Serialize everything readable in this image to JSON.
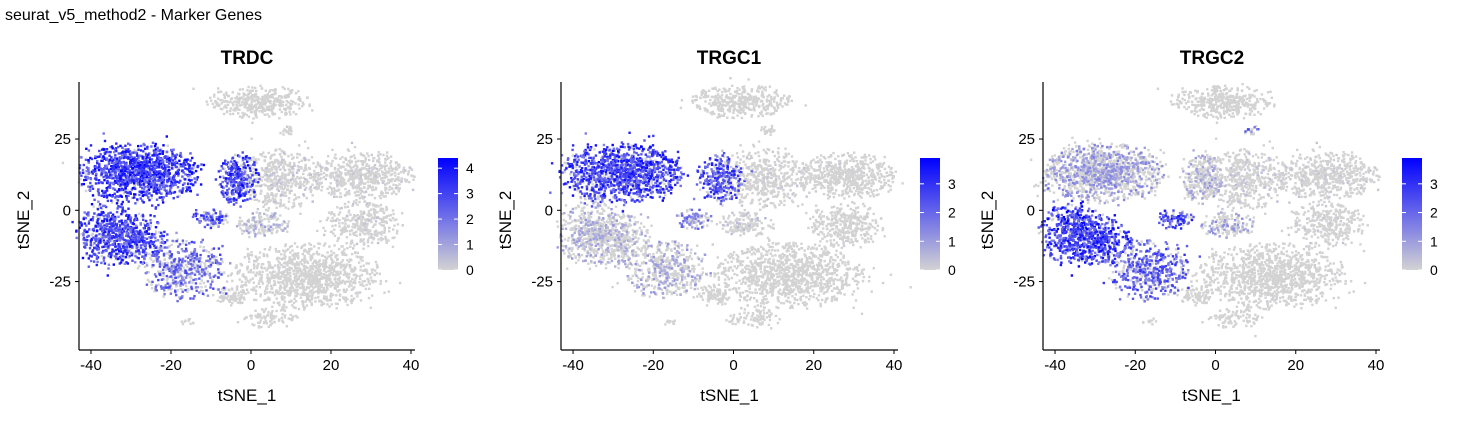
{
  "page": {
    "title": "seurat_v5_method2 - Marker Genes"
  },
  "chart_data": [
    {
      "type": "scatter",
      "title": "TRDC",
      "xlabel": "tSNE_1",
      "ylabel": "tSNE_2",
      "xlim": [
        -43,
        41
      ],
      "ylim": [
        -49,
        45
      ],
      "xticks": [
        -40,
        -20,
        0,
        20,
        40
      ],
      "yticks": [
        -25,
        0,
        25
      ],
      "legend": {
        "position": "right",
        "ticks": [
          0,
          1,
          2,
          3,
          4
        ],
        "max": 4.4,
        "low_color": "#d3d3d3",
        "high_color": "#0000ff"
      },
      "clusters": [
        {
          "cx": -28,
          "cy": 13,
          "rx": 13,
          "ry": 9,
          "n": 1200,
          "level": 0.72
        },
        {
          "cx": -36,
          "cy": -8,
          "rx": 6.5,
          "ry": 10,
          "n": 420,
          "level": 0.68
        },
        {
          "cx": -29,
          "cy": -10,
          "rx": 7,
          "ry": 8,
          "n": 380,
          "level": 0.66
        },
        {
          "cx": -17,
          "cy": -21,
          "rx": 9,
          "ry": 9,
          "n": 480,
          "level": 0.5
        },
        {
          "cx": -10,
          "cy": -3,
          "rx": 4,
          "ry": 3,
          "n": 90,
          "level": 0.6
        },
        {
          "cx": -3,
          "cy": 11,
          "rx": 4.5,
          "ry": 7.5,
          "n": 300,
          "level": 0.7
        },
        {
          "cx": 2,
          "cy": 38,
          "rx": 11,
          "ry": 5,
          "n": 380,
          "level": 0.03
        },
        {
          "cx": 9,
          "cy": 28,
          "rx": 2,
          "ry": 1.5,
          "n": 20,
          "level": 0.05
        },
        {
          "cx": 8,
          "cy": 11,
          "rx": 9,
          "ry": 9,
          "n": 450,
          "level": 0.08
        },
        {
          "cx": 28,
          "cy": 12,
          "rx": 11,
          "ry": 7,
          "n": 550,
          "level": 0.05
        },
        {
          "cx": 28,
          "cy": -5,
          "rx": 8,
          "ry": 7,
          "n": 320,
          "level": 0.06
        },
        {
          "cx": 3,
          "cy": -5,
          "rx": 6,
          "ry": 4,
          "n": 160,
          "level": 0.18
        },
        {
          "cx": 14,
          "cy": -23,
          "rx": 16,
          "ry": 10,
          "n": 1050,
          "level": 0.03
        },
        {
          "cx": -5,
          "cy": -30,
          "rx": 4,
          "ry": 3,
          "n": 80,
          "level": 0.02
        },
        {
          "cx": 5,
          "cy": -38,
          "rx": 6,
          "ry": 3,
          "n": 80,
          "level": 0.02
        },
        {
          "cx": -16,
          "cy": -39,
          "rx": 2,
          "ry": 1,
          "n": 10,
          "level": 0.02
        }
      ]
    },
    {
      "type": "scatter",
      "title": "TRGC1",
      "xlabel": "tSNE_1",
      "ylabel": "tSNE_2",
      "xlim": [
        -43,
        41
      ],
      "ylim": [
        -49,
        45
      ],
      "xticks": [
        -40,
        -20,
        0,
        20,
        40
      ],
      "yticks": [
        -25,
        0,
        25
      ],
      "legend": {
        "position": "right",
        "ticks": [
          0,
          1,
          2,
          3
        ],
        "max": 3.9,
        "low_color": "#d3d3d3",
        "high_color": "#0000ff"
      },
      "clusters": [
        {
          "cx": -28,
          "cy": 13,
          "rx": 13,
          "ry": 9,
          "n": 1200,
          "level": 0.68
        },
        {
          "cx": -36,
          "cy": -8,
          "rx": 6.5,
          "ry": 10,
          "n": 420,
          "level": 0.2
        },
        {
          "cx": -29,
          "cy": -10,
          "rx": 7,
          "ry": 8,
          "n": 380,
          "level": 0.18
        },
        {
          "cx": -17,
          "cy": -21,
          "rx": 9,
          "ry": 9,
          "n": 480,
          "level": 0.22
        },
        {
          "cx": -10,
          "cy": -3,
          "rx": 4,
          "ry": 3,
          "n": 90,
          "level": 0.4
        },
        {
          "cx": -3,
          "cy": 11,
          "rx": 4.5,
          "ry": 7.5,
          "n": 300,
          "level": 0.6
        },
        {
          "cx": 2,
          "cy": 38,
          "rx": 11,
          "ry": 5,
          "n": 380,
          "level": 0.02
        },
        {
          "cx": 9,
          "cy": 28,
          "rx": 2,
          "ry": 1.5,
          "n": 20,
          "level": 0.04
        },
        {
          "cx": 8,
          "cy": 11,
          "rx": 9,
          "ry": 9,
          "n": 450,
          "level": 0.05
        },
        {
          "cx": 28,
          "cy": 12,
          "rx": 11,
          "ry": 7,
          "n": 550,
          "level": 0.03
        },
        {
          "cx": 28,
          "cy": -5,
          "rx": 8,
          "ry": 7,
          "n": 320,
          "level": 0.03
        },
        {
          "cx": 3,
          "cy": -5,
          "rx": 6,
          "ry": 4,
          "n": 160,
          "level": 0.1
        },
        {
          "cx": 14,
          "cy": -23,
          "rx": 16,
          "ry": 10,
          "n": 1050,
          "level": 0.02
        },
        {
          "cx": -5,
          "cy": -30,
          "rx": 4,
          "ry": 3,
          "n": 80,
          "level": 0.02
        },
        {
          "cx": 5,
          "cy": -38,
          "rx": 6,
          "ry": 3,
          "n": 80,
          "level": 0.02
        },
        {
          "cx": -16,
          "cy": -39,
          "rx": 2,
          "ry": 1,
          "n": 10,
          "level": 0.02
        }
      ]
    },
    {
      "type": "scatter",
      "title": "TRGC2",
      "xlabel": "tSNE_1",
      "ylabel": "tSNE_2",
      "xlim": [
        -43,
        41
      ],
      "ylim": [
        -49,
        45
      ],
      "xticks": [
        -40,
        -20,
        0,
        20,
        40
      ],
      "yticks": [
        -25,
        0,
        25
      ],
      "legend": {
        "position": "right",
        "ticks": [
          0,
          1,
          2,
          3
        ],
        "max": 3.9,
        "low_color": "#d3d3d3",
        "high_color": "#0000ff"
      },
      "clusters": [
        {
          "cx": -28,
          "cy": 13,
          "rx": 13,
          "ry": 9,
          "n": 1200,
          "level": 0.28
        },
        {
          "cx": -36,
          "cy": -8,
          "rx": 6.5,
          "ry": 10,
          "n": 420,
          "level": 0.72
        },
        {
          "cx": -29,
          "cy": -10,
          "rx": 7,
          "ry": 8,
          "n": 380,
          "level": 0.7
        },
        {
          "cx": -17,
          "cy": -21,
          "rx": 9,
          "ry": 9,
          "n": 480,
          "level": 0.55
        },
        {
          "cx": -10,
          "cy": -3,
          "rx": 4,
          "ry": 3,
          "n": 90,
          "level": 0.65
        },
        {
          "cx": -3,
          "cy": 11,
          "rx": 4.5,
          "ry": 7.5,
          "n": 300,
          "level": 0.2
        },
        {
          "cx": 2,
          "cy": 38,
          "rx": 11,
          "ry": 5,
          "n": 380,
          "level": 0.02
        },
        {
          "cx": 9,
          "cy": 28,
          "rx": 2,
          "ry": 1.5,
          "n": 20,
          "level": 0.5
        },
        {
          "cx": 8,
          "cy": 11,
          "rx": 9,
          "ry": 9,
          "n": 450,
          "level": 0.08
        },
        {
          "cx": 28,
          "cy": 12,
          "rx": 11,
          "ry": 7,
          "n": 550,
          "level": 0.05
        },
        {
          "cx": 28,
          "cy": -5,
          "rx": 8,
          "ry": 7,
          "n": 320,
          "level": 0.05
        },
        {
          "cx": 3,
          "cy": -5,
          "rx": 6,
          "ry": 4,
          "n": 160,
          "level": 0.25
        },
        {
          "cx": 14,
          "cy": -23,
          "rx": 16,
          "ry": 10,
          "n": 1050,
          "level": 0.03
        },
        {
          "cx": -5,
          "cy": -30,
          "rx": 4,
          "ry": 3,
          "n": 80,
          "level": 0.02
        },
        {
          "cx": 5,
          "cy": -38,
          "rx": 6,
          "ry": 3,
          "n": 80,
          "level": 0.02
        },
        {
          "cx": -16,
          "cy": -39,
          "rx": 2,
          "ry": 1,
          "n": 10,
          "level": 0.02
        }
      ]
    }
  ]
}
